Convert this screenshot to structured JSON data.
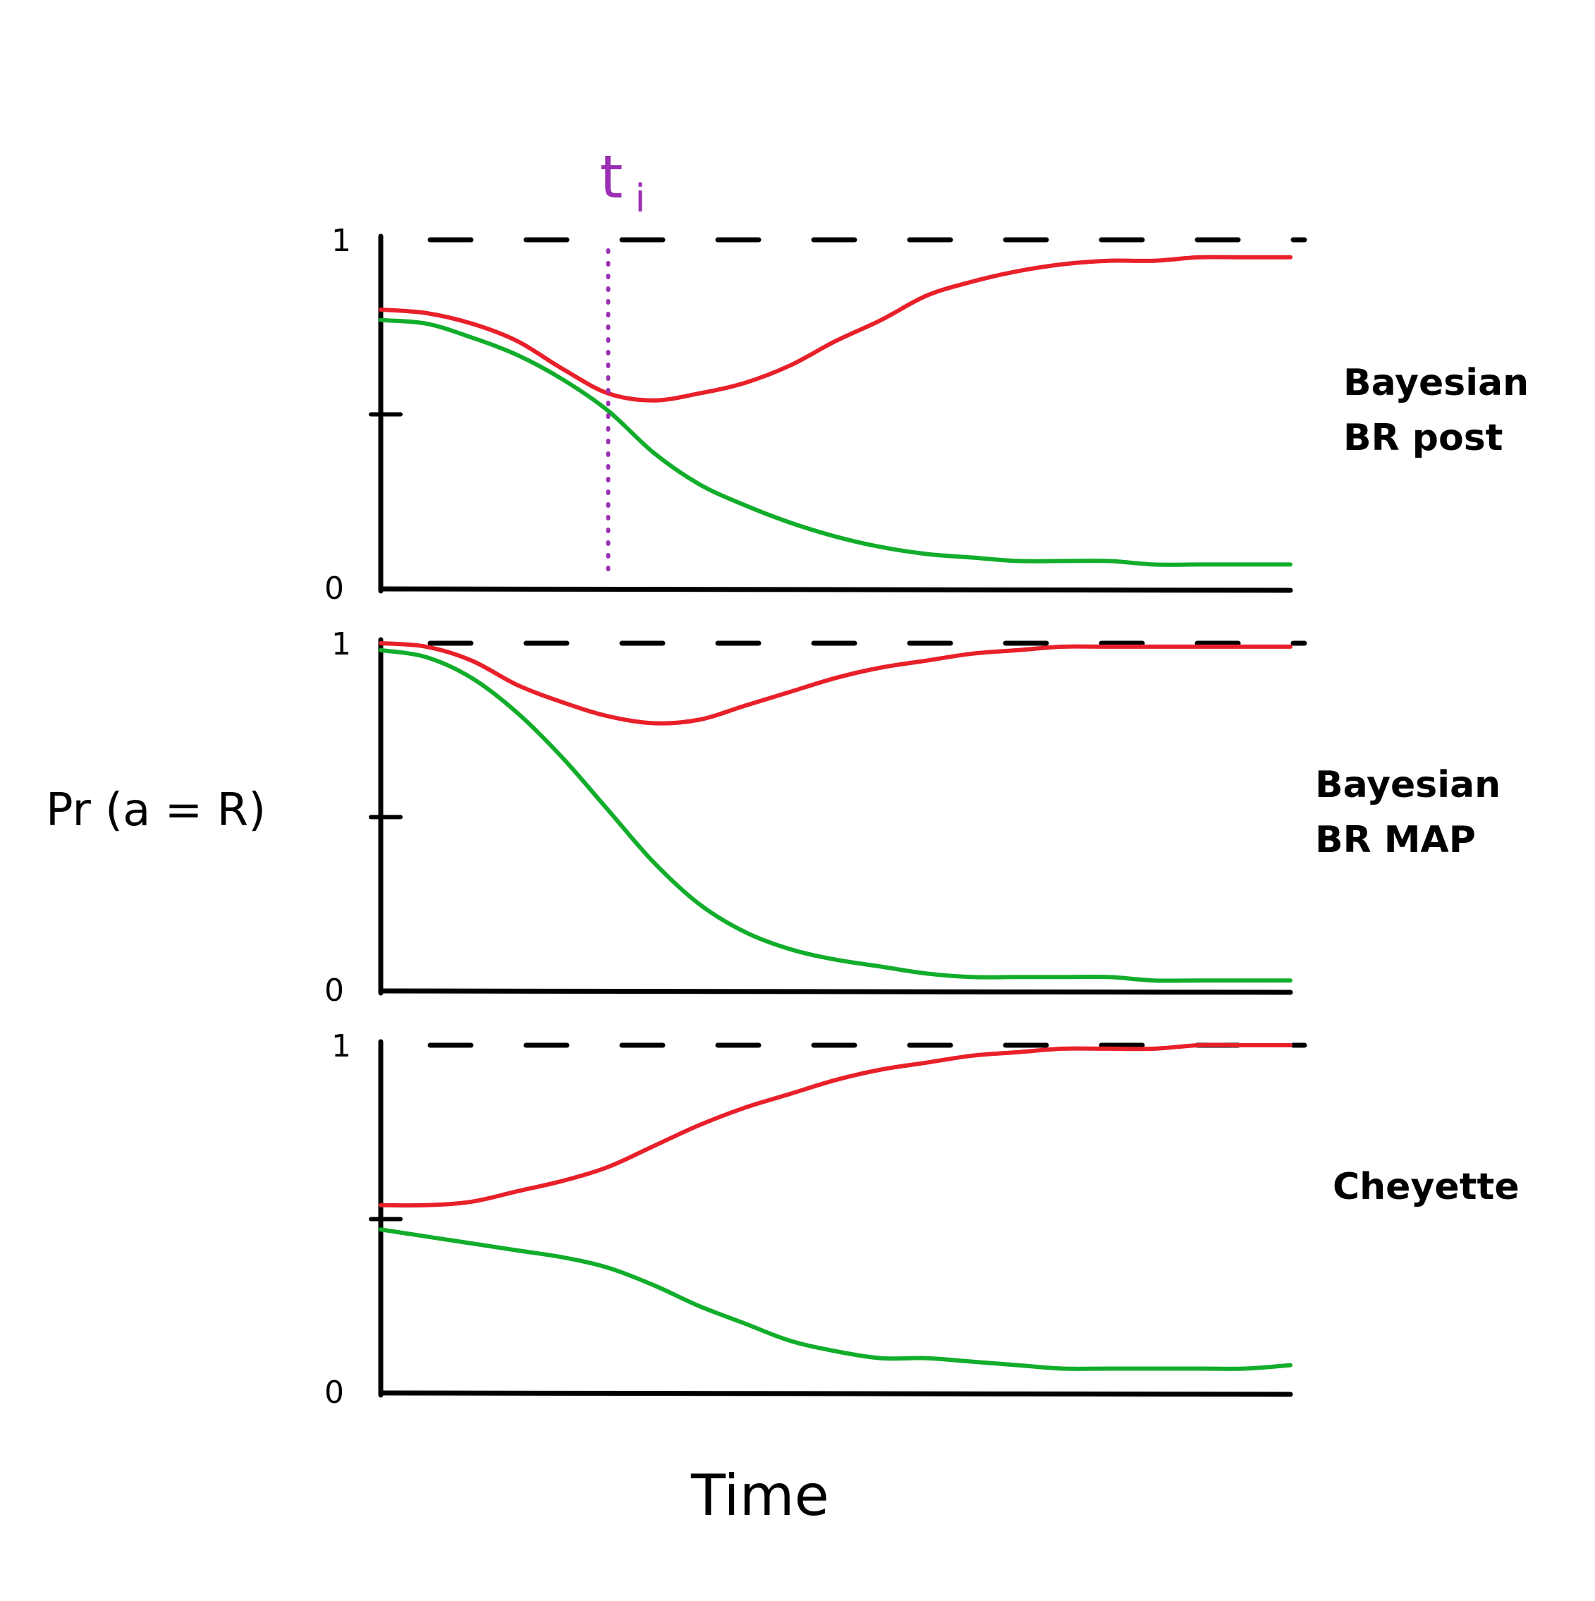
{
  "chart_data": {
    "type": "line",
    "ylabel": "Pr (a = R)",
    "xlabel": "Time",
    "y_ticks": [
      "0",
      "1"
    ],
    "ylim": [
      0,
      1
    ],
    "xlim": [
      0,
      1
    ],
    "reference_line": {
      "y": 1,
      "style": "dashed",
      "color": "#111111"
    },
    "colors": {
      "red": "#e8202a",
      "green": "#12ad2b",
      "marker": "#9b2fb3"
    },
    "panels": [
      {
        "name": "Bayesian BR post",
        "label_lines": [
          "Bayesian",
          "BR post"
        ],
        "marker": {
          "label": "t",
          "subscript": "i",
          "x": 0.25
        },
        "series": [
          {
            "color": "#e8202a",
            "x": [
              0.0,
              0.05,
              0.1,
              0.15,
              0.2,
              0.25,
              0.3,
              0.35,
              0.4,
              0.45,
              0.5,
              0.55,
              0.6,
              0.65,
              0.7,
              0.75,
              0.8,
              0.85,
              0.9,
              0.95,
              1.0
            ],
            "y": [
              0.8,
              0.79,
              0.76,
              0.71,
              0.63,
              0.56,
              0.54,
              0.56,
              0.59,
              0.64,
              0.71,
              0.77,
              0.84,
              0.88,
              0.91,
              0.93,
              0.94,
              0.94,
              0.95,
              0.95,
              0.95
            ]
          },
          {
            "color": "#12ad2b",
            "x": [
              0.0,
              0.05,
              0.1,
              0.15,
              0.2,
              0.25,
              0.3,
              0.35,
              0.4,
              0.45,
              0.5,
              0.55,
              0.6,
              0.65,
              0.7,
              0.75,
              0.8,
              0.85,
              0.9,
              0.95,
              1.0
            ],
            "y": [
              0.77,
              0.76,
              0.72,
              0.67,
              0.6,
              0.51,
              0.39,
              0.3,
              0.24,
              0.19,
              0.15,
              0.12,
              0.1,
              0.09,
              0.08,
              0.08,
              0.08,
              0.07,
              0.07,
              0.07,
              0.07
            ]
          }
        ]
      },
      {
        "name": "Bayesian BR MAP",
        "label_lines": [
          "Bayesian",
          "BR MAP"
        ],
        "series": [
          {
            "color": "#e8202a",
            "x": [
              0.0,
              0.05,
              0.1,
              0.15,
              0.2,
              0.25,
              0.3,
              0.35,
              0.4,
              0.45,
              0.5,
              0.55,
              0.6,
              0.65,
              0.7,
              0.75,
              0.8,
              0.85,
              0.9,
              0.95,
              1.0
            ],
            "y": [
              1.0,
              0.99,
              0.95,
              0.88,
              0.83,
              0.79,
              0.77,
              0.78,
              0.82,
              0.86,
              0.9,
              0.93,
              0.95,
              0.97,
              0.98,
              0.99,
              0.99,
              0.99,
              0.99,
              0.99,
              0.99
            ]
          },
          {
            "color": "#12ad2b",
            "x": [
              0.0,
              0.05,
              0.1,
              0.15,
              0.2,
              0.25,
              0.3,
              0.35,
              0.4,
              0.45,
              0.5,
              0.55,
              0.6,
              0.65,
              0.7,
              0.75,
              0.8,
              0.85,
              0.9,
              0.95,
              1.0
            ],
            "y": [
              0.98,
              0.96,
              0.9,
              0.8,
              0.67,
              0.52,
              0.37,
              0.25,
              0.17,
              0.12,
              0.09,
              0.07,
              0.05,
              0.04,
              0.04,
              0.04,
              0.04,
              0.03,
              0.03,
              0.03,
              0.03
            ]
          }
        ]
      },
      {
        "name": "Cheyette",
        "label_lines": [
          "Cheyette"
        ],
        "series": [
          {
            "color": "#e8202a",
            "x": [
              0.0,
              0.05,
              0.1,
              0.15,
              0.2,
              0.25,
              0.3,
              0.35,
              0.4,
              0.45,
              0.5,
              0.55,
              0.6,
              0.65,
              0.7,
              0.75,
              0.8,
              0.85,
              0.9,
              0.95,
              1.0
            ],
            "y": [
              0.54,
              0.54,
              0.55,
              0.58,
              0.61,
              0.65,
              0.71,
              0.77,
              0.82,
              0.86,
              0.9,
              0.93,
              0.95,
              0.97,
              0.98,
              0.99,
              0.99,
              0.99,
              1.0,
              1.0,
              1.0
            ]
          },
          {
            "color": "#12ad2b",
            "x": [
              0.0,
              0.05,
              0.1,
              0.15,
              0.2,
              0.25,
              0.3,
              0.35,
              0.4,
              0.45,
              0.5,
              0.55,
              0.6,
              0.65,
              0.7,
              0.75,
              0.8,
              0.85,
              0.9,
              0.95,
              1.0
            ],
            "y": [
              0.47,
              0.45,
              0.43,
              0.41,
              0.39,
              0.36,
              0.31,
              0.25,
              0.2,
              0.15,
              0.12,
              0.1,
              0.1,
              0.09,
              0.08,
              0.07,
              0.07,
              0.07,
              0.07,
              0.07,
              0.08
            ]
          }
        ]
      }
    ]
  }
}
